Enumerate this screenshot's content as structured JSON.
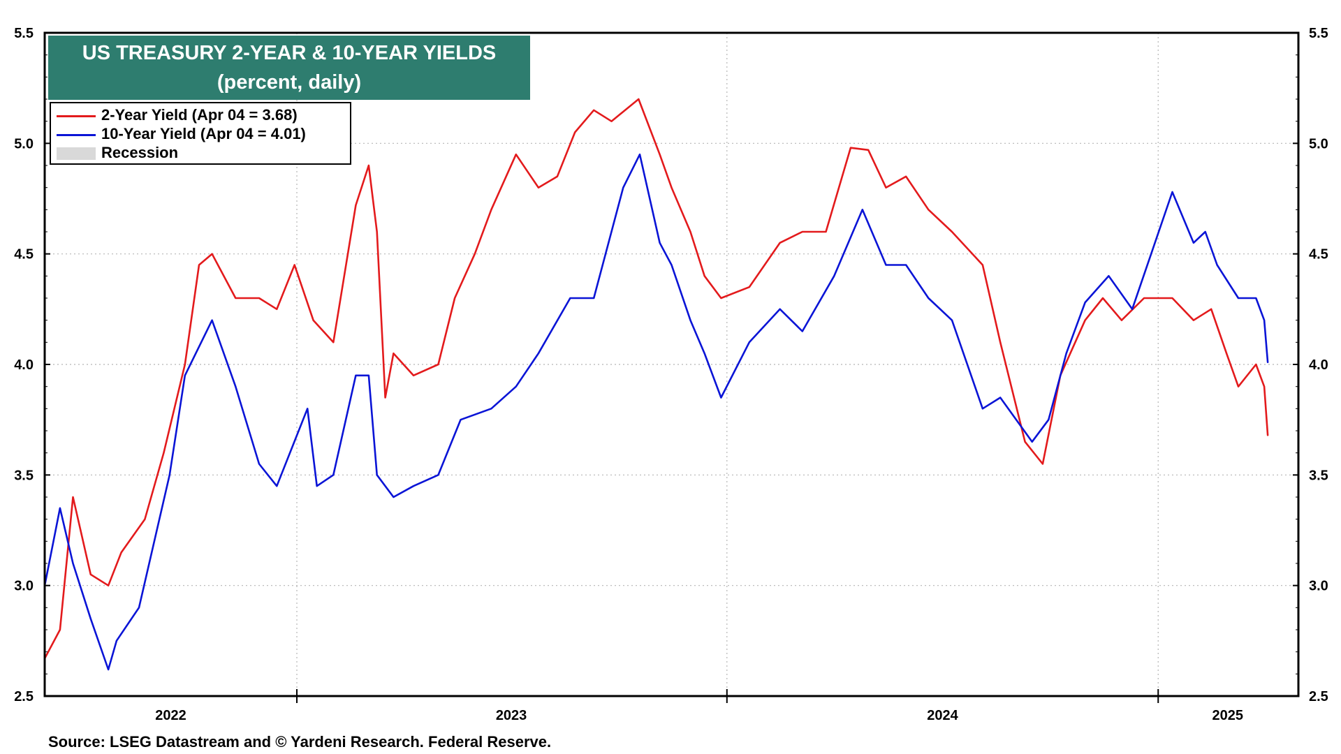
{
  "title": {
    "line1": "US TREASURY 2-YEAR & 10-YEAR YIELDS",
    "line2": "(percent, daily)"
  },
  "legend": {
    "two_year": "2-Year Yield (Apr 04 = 3.68)",
    "ten_year": "10-Year Yield (Apr 04 = 4.01)",
    "recession": "Recession"
  },
  "source": "Source: LSEG Datastream and © Yardeni Research. Federal Reserve.",
  "colors": {
    "two_year": "#e31a1c",
    "ten_year": "#0a14d6",
    "recession": "#d9d9d9",
    "title_bg": "#2e7d6f"
  },
  "chart_data": {
    "type": "line",
    "ylim": [
      2.5,
      5.5
    ],
    "y_ticks": [
      "2.5",
      "3.0",
      "3.5",
      "4.0",
      "4.5",
      "5.0",
      "5.5"
    ],
    "xlim": [
      "2022-06-01",
      "2025-04-30"
    ],
    "x_ticks": [
      "2022",
      "2023",
      "2024",
      "2025"
    ],
    "grid": true,
    "legend_position": "top-left",
    "series": [
      {
        "name": "2-Year Yield (Apr 04 = 3.68)",
        "color": "#e31a1c",
        "x": [
          "2022-06-01",
          "2022-06-14",
          "2022-06-25",
          "2022-07-10",
          "2022-07-25",
          "2022-08-05",
          "2022-08-25",
          "2022-09-10",
          "2022-09-28",
          "2022-10-10",
          "2022-10-21",
          "2022-11-10",
          "2022-11-30",
          "2022-12-15",
          "2022-12-30",
          "2023-01-15",
          "2023-02-01",
          "2023-02-20",
          "2023-03-03",
          "2023-03-10",
          "2023-03-17",
          "2023-03-24",
          "2023-04-10",
          "2023-05-01",
          "2023-05-15",
          "2023-06-01",
          "2023-06-15",
          "2023-07-06",
          "2023-07-25",
          "2023-08-10",
          "2023-08-25",
          "2023-09-10",
          "2023-09-25",
          "2023-10-18",
          "2023-11-05",
          "2023-11-15",
          "2023-12-01",
          "2023-12-13",
          "2023-12-27",
          "2024-01-20",
          "2024-02-15",
          "2024-03-05",
          "2024-03-25",
          "2024-04-15",
          "2024-04-30",
          "2024-05-15",
          "2024-06-01",
          "2024-06-20",
          "2024-07-10",
          "2024-08-05",
          "2024-08-20",
          "2024-09-10",
          "2024-09-25",
          "2024-10-10",
          "2024-10-31",
          "2024-11-15",
          "2024-12-01",
          "2024-12-20",
          "2025-01-13",
          "2025-01-31",
          "2025-02-15",
          "2025-02-28",
          "2025-03-10",
          "2025-03-25",
          "2025-04-01",
          "2025-04-04"
        ],
        "y": [
          2.67,
          2.8,
          3.4,
          3.05,
          3.0,
          3.15,
          3.3,
          3.6,
          4.0,
          4.45,
          4.5,
          4.3,
          4.3,
          4.25,
          4.45,
          4.2,
          4.1,
          4.72,
          4.9,
          4.6,
          3.85,
          4.05,
          3.95,
          4.0,
          4.3,
          4.5,
          4.7,
          4.95,
          4.8,
          4.85,
          5.05,
          5.15,
          5.1,
          5.2,
          4.95,
          4.8,
          4.6,
          4.4,
          4.3,
          4.35,
          4.55,
          4.6,
          4.6,
          4.98,
          4.97,
          4.8,
          4.85,
          4.7,
          4.6,
          4.45,
          4.1,
          3.65,
          3.55,
          3.95,
          4.2,
          4.3,
          4.2,
          4.3,
          4.3,
          4.2,
          4.25,
          4.05,
          3.9,
          4.0,
          3.9,
          3.68
        ]
      },
      {
        "name": "10-Year Yield (Apr 04 = 4.01)",
        "color": "#0a14d6",
        "x": [
          "2022-06-01",
          "2022-06-14",
          "2022-06-25",
          "2022-07-10",
          "2022-07-25",
          "2022-08-01",
          "2022-08-20",
          "2022-09-15",
          "2022-09-28",
          "2022-10-21",
          "2022-11-10",
          "2022-11-30",
          "2022-12-15",
          "2023-01-10",
          "2023-01-18",
          "2023-02-01",
          "2023-02-20",
          "2023-03-03",
          "2023-03-10",
          "2023-03-24",
          "2023-04-10",
          "2023-05-01",
          "2023-05-20",
          "2023-06-15",
          "2023-07-06",
          "2023-07-25",
          "2023-08-21",
          "2023-09-10",
          "2023-10-05",
          "2023-10-19",
          "2023-11-05",
          "2023-11-15",
          "2023-12-01",
          "2023-12-13",
          "2023-12-27",
          "2024-01-20",
          "2024-02-15",
          "2024-03-05",
          "2024-04-01",
          "2024-04-25",
          "2024-05-15",
          "2024-06-01",
          "2024-06-20",
          "2024-07-10",
          "2024-08-05",
          "2024-08-20",
          "2024-09-16",
          "2024-09-30",
          "2024-10-15",
          "2024-10-31",
          "2024-11-20",
          "2024-12-10",
          "2025-01-13",
          "2025-01-31",
          "2025-02-10",
          "2025-02-20",
          "2025-03-10",
          "2025-03-25",
          "2025-04-01",
          "2025-04-04"
        ],
        "y": [
          3.0,
          3.35,
          3.1,
          2.85,
          2.62,
          2.75,
          2.9,
          3.5,
          3.95,
          4.2,
          3.9,
          3.55,
          3.45,
          3.8,
          3.45,
          3.5,
          3.95,
          3.95,
          3.5,
          3.4,
          3.45,
          3.5,
          3.75,
          3.8,
          3.9,
          4.05,
          4.3,
          4.3,
          4.8,
          4.95,
          4.55,
          4.45,
          4.2,
          4.05,
          3.85,
          4.1,
          4.25,
          4.15,
          4.4,
          4.7,
          4.45,
          4.45,
          4.3,
          4.2,
          3.8,
          3.85,
          3.65,
          3.75,
          4.05,
          4.28,
          4.4,
          4.25,
          4.78,
          4.55,
          4.6,
          4.45,
          4.3,
          4.3,
          4.2,
          4.01
        ]
      }
    ]
  }
}
